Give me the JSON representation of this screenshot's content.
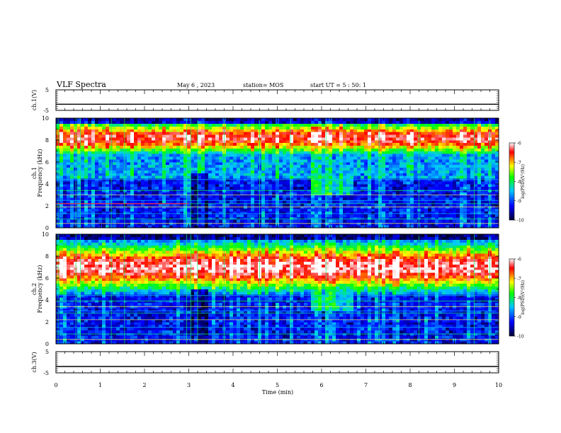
{
  "header": {
    "title": "VLF Spectra",
    "date": "May 6 , 2023",
    "station": "station= MOS",
    "start": "start UT = 5 : 50: 1"
  },
  "colors": {
    "colormap": [
      "#000033",
      "#0000ff",
      "#00c8ff",
      "#00ff00",
      "#ffff00",
      "#ff0000",
      "#ffffff"
    ]
  },
  "chart_data": [
    {
      "type": "line",
      "name": "ch1-waveform",
      "ylabel": "ch.1(V)",
      "ylim": [
        -5,
        5
      ],
      "yticks": [
        "5",
        "-5"
      ],
      "x": [
        0,
        10
      ],
      "y": [
        -2.0,
        -2.0
      ]
    },
    {
      "type": "heatmap",
      "name": "ch1-spectrogram",
      "ylabel_line1": "ch.1",
      "ylabel_line2": "Frequency (kHz)",
      "ylim": [
        0,
        10
      ],
      "yticks": [
        "0",
        "2",
        "4",
        "6",
        "8",
        "10"
      ],
      "colorbar": {
        "label": "log(PSD)(V²/Hz)",
        "range": [
          -10,
          -6
        ],
        "ticks": [
          "-6",
          "-7",
          "-8",
          "-9",
          "-10"
        ]
      }
    },
    {
      "type": "heatmap",
      "name": "ch2-spectrogram",
      "ylabel_line1": "ch.2",
      "ylabel_line2": "Frequency (kHz)",
      "ylim": [
        0,
        10
      ],
      "yticks": [
        "0",
        "2",
        "4",
        "6",
        "8",
        "10"
      ],
      "colorbar": {
        "label": "log(PSD)(V²/Hz)",
        "range": [
          -10,
          -6
        ],
        "ticks": [
          "-6",
          "-7",
          "-8",
          "-9",
          "-10"
        ]
      }
    },
    {
      "type": "line",
      "name": "ch3-waveform",
      "ylabel": "ch.3(V)",
      "ylim": [
        -5,
        5
      ],
      "yticks": [
        "5",
        "-5"
      ],
      "x": [
        0,
        10
      ],
      "y": [
        -2.0,
        -2.0
      ]
    }
  ],
  "xaxis": {
    "label": "Time (min)",
    "xlim": [
      0,
      10
    ],
    "ticks": [
      "0",
      "1",
      "2",
      "3",
      "4",
      "5",
      "6",
      "7",
      "8",
      "9",
      "10"
    ]
  }
}
